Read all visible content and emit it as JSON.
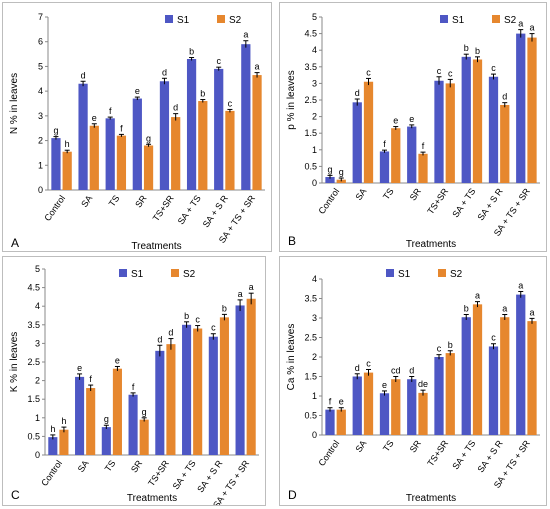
{
  "colors": {
    "S1": "#4E57C4",
    "S2": "#E6872E",
    "errorbar": "#000000",
    "axis": "#888888"
  },
  "chart_data": [
    {
      "type": "bar",
      "panel": "A",
      "xlabel": "Treatments",
      "ylabel": "N % in leaves",
      "ylim": [
        0,
        7
      ],
      "yticks": [
        0,
        1,
        2,
        3,
        4,
        5,
        6,
        7
      ],
      "categories": [
        "Control",
        "SA",
        "TS",
        "SR",
        "TS+SR",
        "SA + TS",
        "SA + S R",
        "SA + TS + SR"
      ],
      "legend": "top-left",
      "series": [
        {
          "name": "S1",
          "values": [
            2.1,
            4.3,
            2.9,
            3.7,
            4.4,
            5.3,
            4.9,
            5.9
          ],
          "errors": [
            0.06,
            0.1,
            0.05,
            0.06,
            0.12,
            0.06,
            0.07,
            0.14
          ],
          "letters": [
            "g",
            "d",
            "f",
            "e",
            "d",
            "b",
            "c",
            "a"
          ]
        },
        {
          "name": "S2",
          "values": [
            1.55,
            2.6,
            2.2,
            1.8,
            2.95,
            3.6,
            3.2,
            4.65
          ],
          "errors": [
            0.06,
            0.08,
            0.05,
            0.05,
            0.14,
            0.06,
            0.06,
            0.1
          ],
          "letters": [
            "h",
            "e",
            "f",
            "g",
            "d",
            "b",
            "c",
            "a"
          ]
        }
      ]
    },
    {
      "type": "bar",
      "panel": "B",
      "xlabel": "Treatments",
      "ylabel": "p % in leaves",
      "ylim": [
        0,
        5
      ],
      "yticks": [
        0,
        0.5,
        1,
        1.5,
        2,
        2.5,
        3,
        3.5,
        4,
        4.5,
        5
      ],
      "categories": [
        "Control",
        "SA",
        "TS",
        "SR",
        "TS+SR",
        "SA + TS",
        "SA + S R",
        "SA + TS + SR"
      ],
      "legend": "top-right",
      "series": [
        {
          "name": "S1",
          "values": [
            0.18,
            2.43,
            0.95,
            1.7,
            3.08,
            3.8,
            3.2,
            4.5
          ],
          "errors": [
            0.05,
            0.1,
            0.04,
            0.05,
            0.12,
            0.08,
            0.08,
            0.12
          ],
          "letters": [
            "g",
            "d",
            "f",
            "e",
            "c",
            "b",
            "c",
            "a"
          ]
        },
        {
          "name": "S2",
          "values": [
            0.1,
            3.05,
            1.65,
            0.88,
            3.0,
            3.72,
            2.35,
            4.38
          ],
          "errors": [
            0.05,
            0.1,
            0.05,
            0.05,
            0.12,
            0.08,
            0.07,
            0.12
          ],
          "letters": [
            "g",
            "c",
            "e",
            "f",
            "c",
            "b",
            "d",
            "a"
          ]
        }
      ]
    },
    {
      "type": "bar",
      "panel": "C",
      "xlabel": "Treatments",
      "ylabel": "K % in leaves",
      "ylim": [
        0,
        5
      ],
      "yticks": [
        0,
        0.5,
        1,
        1.5,
        2,
        2.5,
        3,
        3.5,
        4,
        4.5,
        5
      ],
      "categories": [
        "Control",
        "SA",
        "TS",
        "SR",
        "TS+SR",
        "SA + TS",
        "SA + S R",
        "SA + TS + SR"
      ],
      "legend": "top-center",
      "series": [
        {
          "name": "S1",
          "values": [
            0.48,
            2.1,
            0.75,
            1.62,
            2.8,
            3.5,
            3.18,
            4.02
          ],
          "errors": [
            0.06,
            0.08,
            0.05,
            0.05,
            0.15,
            0.08,
            0.08,
            0.15
          ],
          "letters": [
            "h",
            "e",
            "g",
            "f",
            "d",
            "b",
            "c",
            "a"
          ]
        },
        {
          "name": "S2",
          "values": [
            0.68,
            1.8,
            2.32,
            0.95,
            2.98,
            3.4,
            3.7,
            4.2
          ],
          "errors": [
            0.07,
            0.08,
            0.06,
            0.05,
            0.15,
            0.08,
            0.08,
            0.15
          ],
          "letters": [
            "h",
            "f",
            "e",
            "g",
            "d",
            "c",
            "b",
            "a"
          ]
        }
      ]
    },
    {
      "type": "bar",
      "panel": "D",
      "xlabel": "Treatments",
      "ylabel": "Ca % in leaves",
      "ylim": [
        0,
        4
      ],
      "yticks": [
        0,
        0.5,
        1,
        1.5,
        2,
        2.5,
        3,
        3.5,
        4
      ],
      "categories": [
        "Control",
        "SA",
        "TS",
        "SR",
        "TS+SR",
        "SA + TS",
        "SA + S R",
        "SA + TS + SR"
      ],
      "legend": "top-center",
      "series": [
        {
          "name": "S1",
          "values": [
            0.65,
            1.5,
            1.07,
            1.43,
            2.0,
            3.02,
            2.27,
            3.6
          ],
          "errors": [
            0.05,
            0.07,
            0.06,
            0.07,
            0.06,
            0.07,
            0.07,
            0.08
          ],
          "letters": [
            "f",
            "d",
            "e",
            "d",
            "c",
            "b",
            "c",
            "a"
          ]
        },
        {
          "name": "S2",
          "values": [
            0.65,
            1.6,
            1.43,
            1.08,
            2.1,
            3.35,
            3.02,
            2.92
          ],
          "errors": [
            0.05,
            0.08,
            0.07,
            0.07,
            0.06,
            0.07,
            0.07,
            0.07
          ],
          "letters": [
            "e",
            "c",
            "cd",
            "de",
            "b",
            "a",
            "a",
            "a"
          ]
        }
      ]
    }
  ]
}
